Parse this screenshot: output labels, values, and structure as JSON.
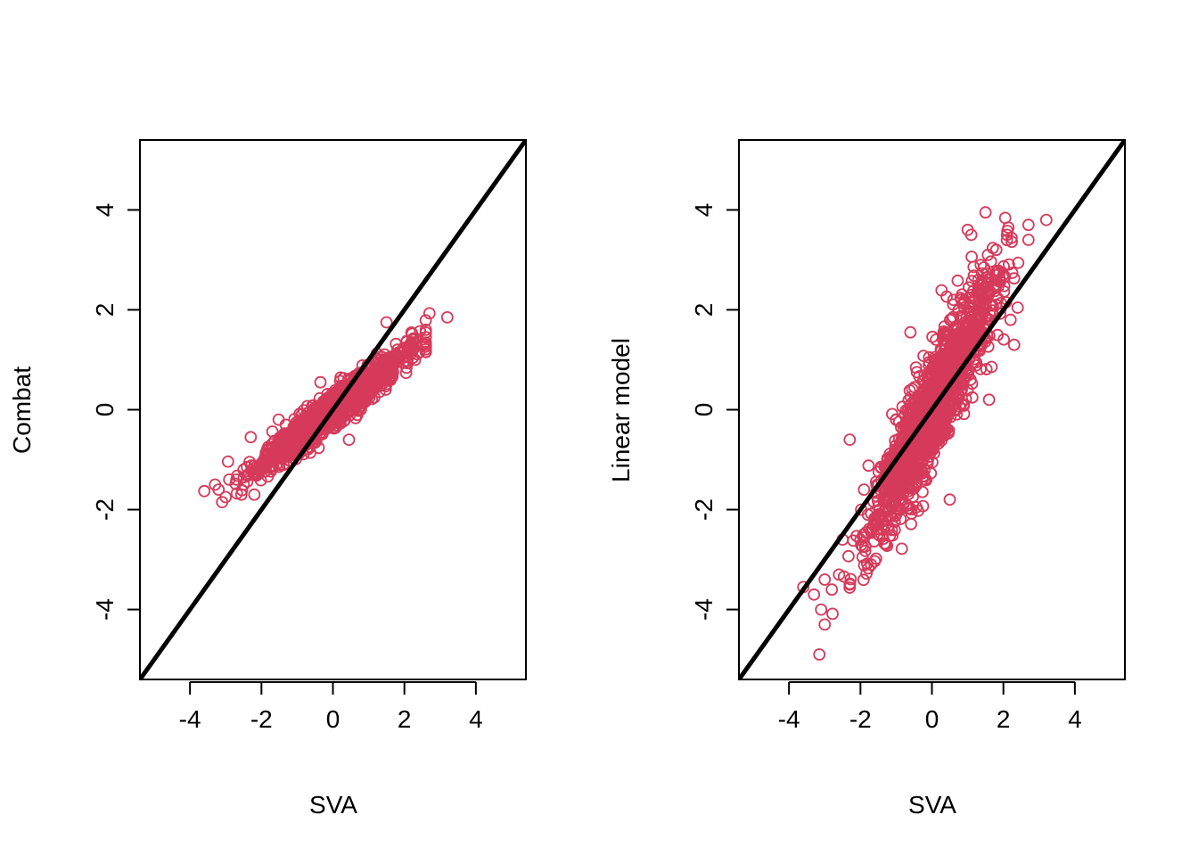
{
  "colors": {
    "points": "#d63a5a",
    "line": "#000000",
    "axes": "#000000"
  },
  "chart_data": [
    {
      "type": "scatter",
      "xlabel": "SVA",
      "ylabel": "Combat",
      "xlim": [
        -5.4,
        5.4
      ],
      "ylim": [
        -5.4,
        5.4
      ],
      "xticks": [
        -4,
        -2,
        0,
        2,
        4
      ],
      "yticks": [
        -4,
        -2,
        0,
        2,
        4
      ],
      "xtick_labels": [
        "-4",
        "-2",
        "0",
        "2",
        "4"
      ],
      "ytick_labels": [
        "-4",
        "-2",
        "0",
        "2",
        "4"
      ],
      "reference_line": {
        "slope": 1,
        "intercept": 0
      },
      "points": [
        [
          -3.6,
          -1.63
        ],
        [
          -3.3,
          -1.5
        ],
        [
          -3.1,
          -1.85
        ],
        [
          -3.0,
          -1.75
        ],
        [
          -3.2,
          -1.6
        ],
        [
          -2.9,
          -1.4
        ],
        [
          -2.7,
          -1.4
        ],
        [
          -2.5,
          -1.2
        ],
        [
          -2.3,
          -0.55
        ],
        [
          -2.2,
          -1.7
        ],
        [
          -2.0,
          -1.1
        ],
        [
          -1.8,
          -1.0
        ],
        [
          -1.6,
          -0.8
        ],
        [
          -1.5,
          -0.95
        ],
        [
          -1.3,
          -0.7
        ],
        [
          -1.2,
          -0.55
        ],
        [
          -1.0,
          -0.6
        ],
        [
          -0.8,
          -0.45
        ],
        [
          -0.6,
          -0.3
        ],
        [
          -0.5,
          -0.1
        ],
        [
          -0.35,
          0.55
        ],
        [
          -0.2,
          -0.3
        ],
        [
          0.0,
          0.0
        ],
        [
          0.2,
          0.1
        ],
        [
          0.4,
          0.3
        ],
        [
          0.45,
          -0.6
        ],
        [
          0.6,
          0.2
        ],
        [
          0.8,
          0.55
        ],
        [
          1.0,
          0.7
        ],
        [
          1.2,
          0.6
        ],
        [
          1.4,
          0.9
        ],
        [
          1.5,
          1.75
        ],
        [
          1.6,
          0.75
        ],
        [
          1.8,
          1.1
        ],
        [
          2.0,
          1.2
        ],
        [
          2.2,
          1.3
        ],
        [
          2.3,
          1.0
        ],
        [
          2.6,
          1.6
        ],
        [
          2.7,
          1.93
        ],
        [
          3.2,
          1.85
        ]
      ]
    },
    {
      "type": "scatter",
      "xlabel": "SVA",
      "ylabel": "Linear model",
      "xlim": [
        -5.4,
        5.4
      ],
      "ylim": [
        -5.4,
        5.4
      ],
      "xticks": [
        -4,
        -2,
        0,
        2,
        4
      ],
      "yticks": [
        -4,
        -2,
        0,
        2,
        4
      ],
      "xtick_labels": [
        "-4",
        "-2",
        "0",
        "2",
        "4"
      ],
      "ytick_labels": [
        "-4",
        "-2",
        "0",
        "2",
        "4"
      ],
      "reference_line": {
        "slope": 1,
        "intercept": 0
      },
      "points": [
        [
          -3.6,
          -3.55
        ],
        [
          -3.3,
          -3.7
        ],
        [
          -3.15,
          -4.9
        ],
        [
          -3.1,
          -4.0
        ],
        [
          -3.0,
          -4.3
        ],
        [
          -3.0,
          -3.4
        ],
        [
          -2.8,
          -3.6
        ],
        [
          -2.6,
          -3.3
        ],
        [
          -2.5,
          -2.6
        ],
        [
          -2.3,
          -0.6
        ],
        [
          -2.3,
          -3.5
        ],
        [
          -2.0,
          -2.6
        ],
        [
          -1.9,
          -1.6
        ],
        [
          -1.7,
          -3.1
        ],
        [
          -1.5,
          -1.5
        ],
        [
          -1.3,
          -2.2
        ],
        [
          -1.0,
          -0.2
        ],
        [
          -0.8,
          -1.9
        ],
        [
          -0.6,
          1.55
        ],
        [
          -0.4,
          -0.5
        ],
        [
          -0.2,
          -1.4
        ],
        [
          0.0,
          -0.3
        ],
        [
          0.3,
          0.6
        ],
        [
          0.5,
          -1.8
        ],
        [
          0.6,
          2.2
        ],
        [
          0.8,
          0.5
        ],
        [
          1.0,
          3.6
        ],
        [
          1.1,
          3.5
        ],
        [
          1.2,
          1.2
        ],
        [
          1.3,
          2.6
        ],
        [
          1.5,
          3.95
        ],
        [
          1.6,
          0.2
        ],
        [
          1.8,
          3.2
        ],
        [
          2.0,
          2.7
        ],
        [
          2.1,
          3.5
        ],
        [
          2.2,
          1.8
        ],
        [
          2.3,
          1.3
        ],
        [
          2.7,
          3.4
        ],
        [
          2.7,
          3.7
        ],
        [
          3.2,
          3.8
        ]
      ]
    }
  ]
}
